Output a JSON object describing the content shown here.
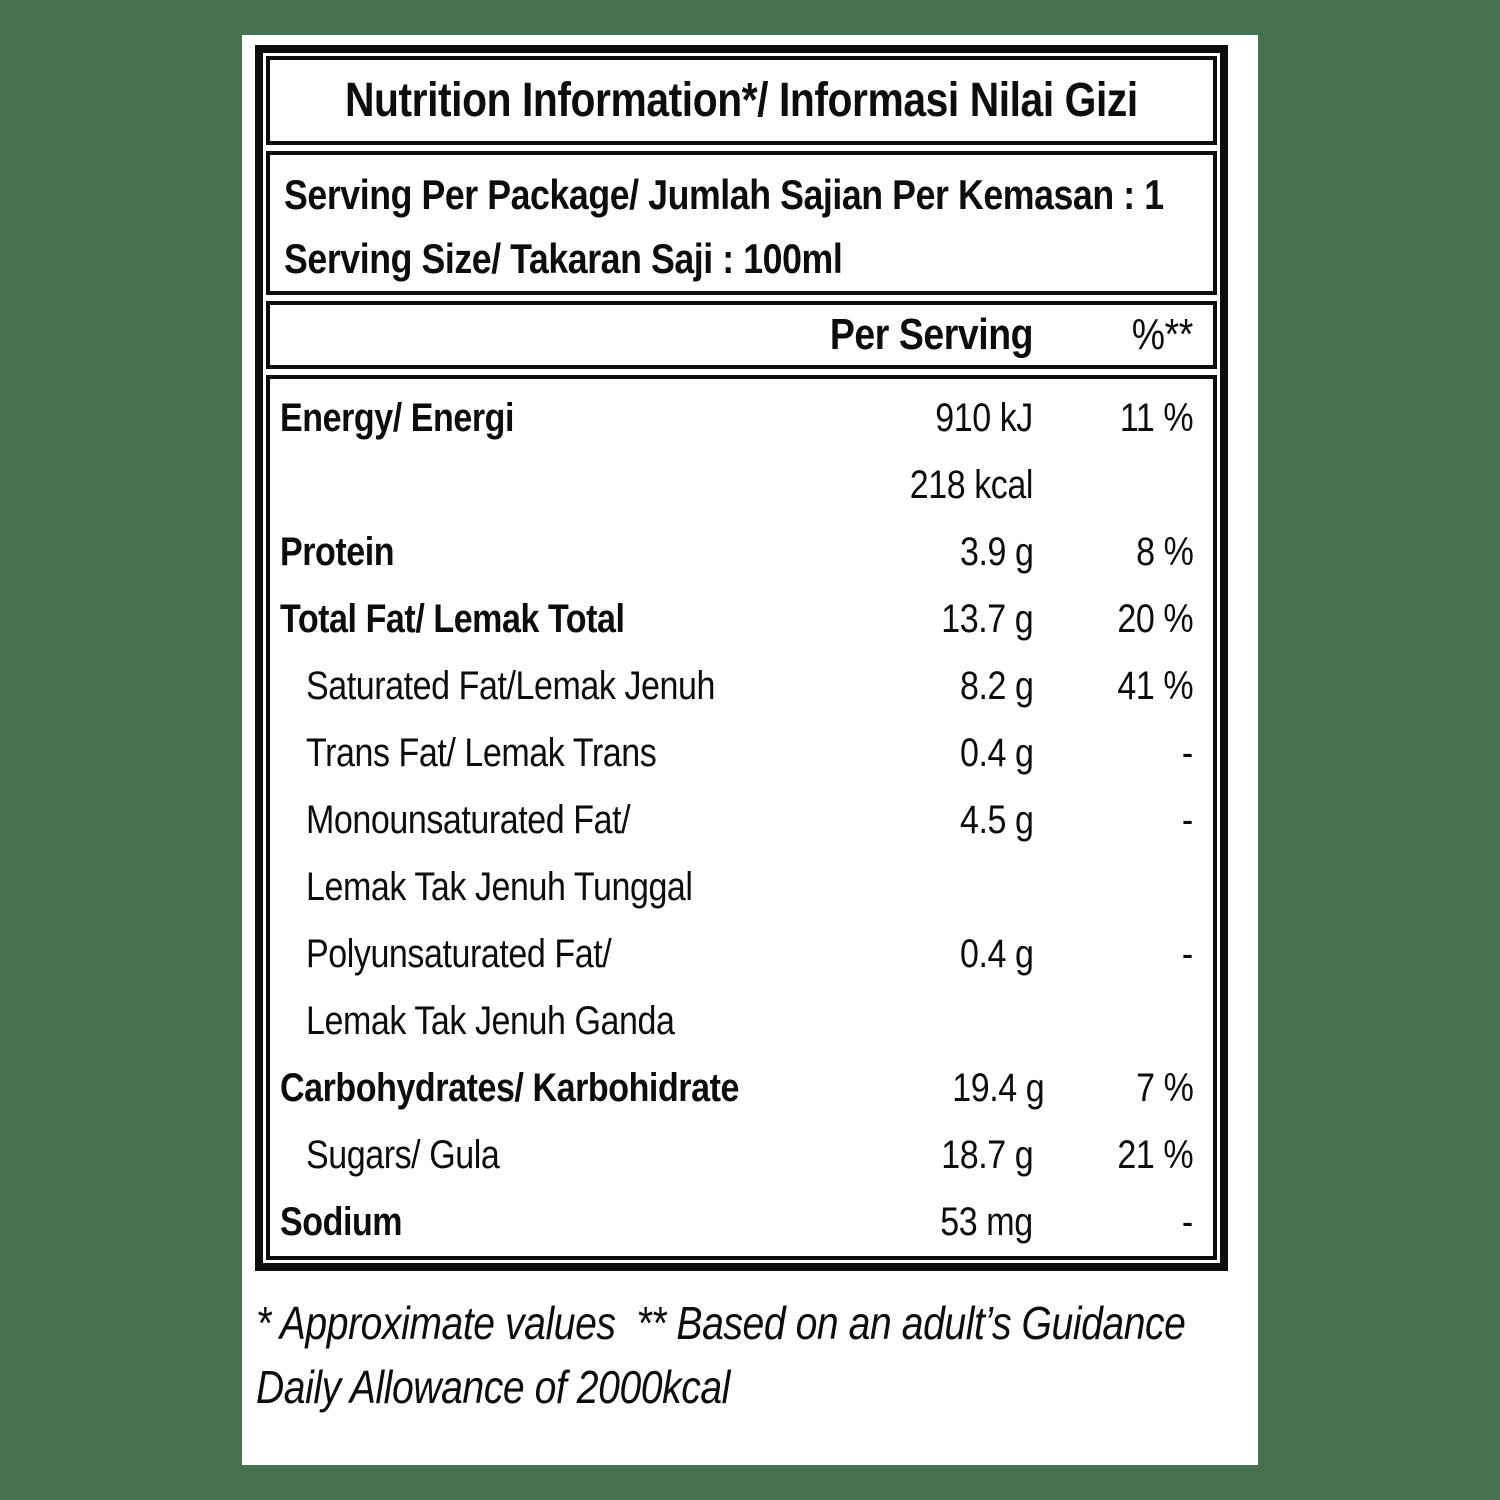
{
  "background_color": "#48724F",
  "text_color": "#0d0d0d",
  "label": {
    "title": "Nutrition Information*/ Informasi Nilai Gizi",
    "serving_lines": [
      "Serving Per Package/ Jumlah Sajian Per Kemasan : 1",
      "Serving Size/ Takaran Saji : 100ml"
    ],
    "columns": {
      "per_serving": "Per Serving",
      "percent": "%**"
    },
    "rows": [
      {
        "label": "Energy/ Energi",
        "style": "main",
        "value": "910 kJ",
        "percent": "11 %"
      },
      {
        "label": "",
        "style": "main",
        "value": "218 kcal",
        "percent": ""
      },
      {
        "label": "Protein",
        "style": "main",
        "value": "3.9 g",
        "percent": "8 %"
      },
      {
        "label": "Total Fat/ Lemak Total",
        "style": "main",
        "value": "13.7 g",
        "percent": "20 %"
      },
      {
        "label": "Saturated Fat/Lemak Jenuh",
        "style": "sub",
        "value": "8.2 g",
        "percent": "41 %"
      },
      {
        "label": "Trans Fat/ Lemak Trans",
        "style": "sub",
        "value": "0.4 g",
        "percent": "-"
      },
      {
        "label": "Monounsaturated Fat/",
        "style": "sub",
        "value": "4.5 g",
        "percent": "-"
      },
      {
        "label": "Lemak Tak Jenuh Tunggal",
        "style": "sub",
        "value": "",
        "percent": ""
      },
      {
        "label": "Polyunsaturated Fat/",
        "style": "sub",
        "value": "0.4 g",
        "percent": "-"
      },
      {
        "label": "Lemak Tak Jenuh Ganda",
        "style": "sub",
        "value": "",
        "percent": ""
      },
      {
        "label": "Carbohydrates/ Karbohidrate",
        "style": "main",
        "value": "19.4 g",
        "percent": "7 %"
      },
      {
        "label": "Sugars/ Gula",
        "style": "sub",
        "value": "18.7 g",
        "percent": "21 %"
      },
      {
        "label": "Sodium",
        "style": "main",
        "value": "53 mg",
        "percent": "-"
      }
    ],
    "footnote_lines": [
      "* Approximate values  ** Based on an adult’s Guidance",
      "Daily Allowance of 2000kcal"
    ]
  }
}
